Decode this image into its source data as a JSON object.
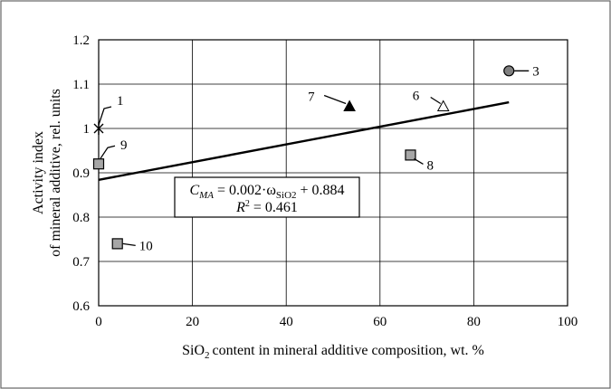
{
  "chart_data": {
    "type": "scatter",
    "xlabel": "content in mineral additive composition, wt. %",
    "xlabel_prefix": "SiO",
    "xlabel_sub": "2",
    "ylabel_line1": "Activity index",
    "ylabel_line2": "of mineral additive, rel. units",
    "xlim": [
      0,
      100
    ],
    "ylim": [
      0.6,
      1.2
    ],
    "xticks": [
      0,
      20,
      40,
      60,
      80,
      100
    ],
    "yticks": [
      0.6,
      0.7,
      0.8,
      0.9,
      1.0,
      1.1,
      1.2
    ],
    "xtick_labels": [
      "0",
      "20",
      "40",
      "60",
      "80",
      "100"
    ],
    "ytick_labels": [
      "0.6",
      "0.7",
      "0.8",
      "0.9",
      "1",
      "1.1",
      "1.2"
    ],
    "grid": true,
    "points": [
      {
        "label": "1",
        "x": 0,
        "y": 1.0,
        "marker": "star"
      },
      {
        "label": "3",
        "x": 87.5,
        "y": 1.13,
        "marker": "circle"
      },
      {
        "label": "6",
        "x": 73.5,
        "y": 1.05,
        "marker": "triangle-open"
      },
      {
        "label": "7",
        "x": 53.5,
        "y": 1.05,
        "marker": "triangle-filled"
      },
      {
        "label": "8",
        "x": 66.5,
        "y": 0.94,
        "marker": "square"
      },
      {
        "label": "9",
        "x": 0,
        "y": 0.92,
        "marker": "square"
      },
      {
        "label": "10",
        "x": 4,
        "y": 0.74,
        "marker": "square"
      }
    ],
    "trendline": {
      "slope": 0.002,
      "intercept": 0.884,
      "x_range": [
        0,
        87.5
      ]
    },
    "equation": {
      "c_symbol": "C",
      "c_sub": "MA",
      "rhs_prefix": " = 0.002·ω",
      "rhs_sub": "SiO2",
      "rhs_suffix": " + 0.884",
      "r2_prefix": "R",
      "r2_sup": "2",
      "r2_suffix": " = 0.461"
    },
    "colors": {
      "marker_fill": "#a6a6a6",
      "circle_fill": "#808080",
      "line": "#000000"
    }
  }
}
